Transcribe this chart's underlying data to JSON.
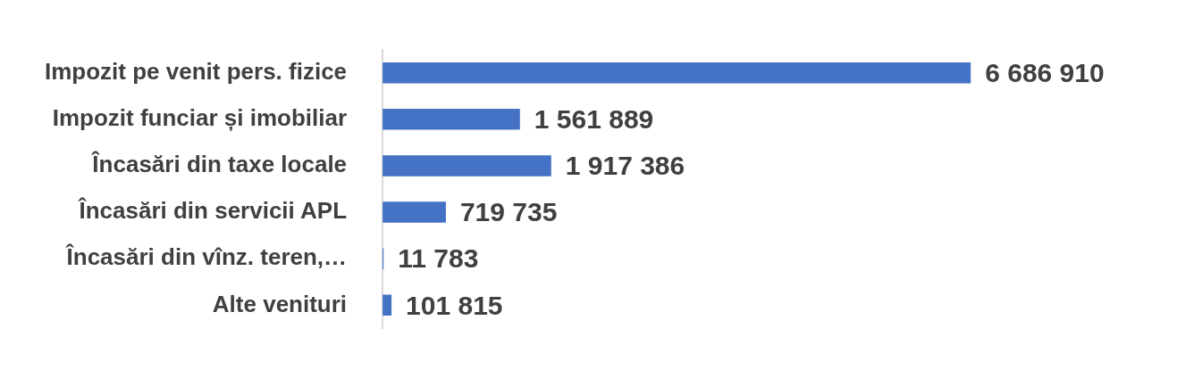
{
  "chart_data": {
    "type": "bar",
    "orientation": "horizontal",
    "categories": [
      "Impozit pe venit pers. fizice",
      "Impozit funciar și imobiliar",
      "Încasări din taxe locale",
      "Încasări din servicii APL",
      "Încasări din vînz. teren,…",
      "Alte venituri"
    ],
    "values": [
      6686910,
      1561889,
      1917386,
      719735,
      11783,
      101815
    ],
    "value_labels": [
      "6 686 910",
      "1 561 889",
      "1 917 386",
      "719 735",
      "11 783",
      "101 815"
    ],
    "color": "#4472c4",
    "grid": false,
    "legend": false
  }
}
